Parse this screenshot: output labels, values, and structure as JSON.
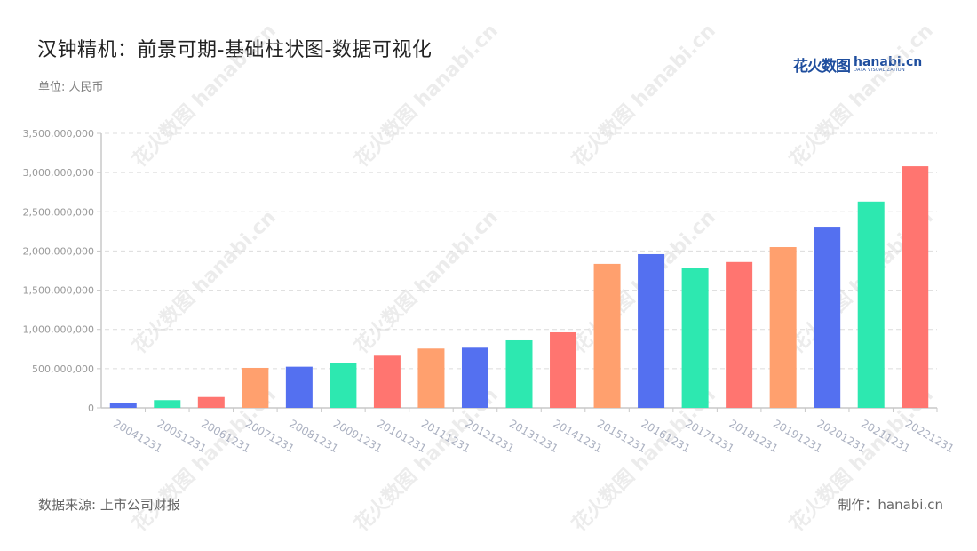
{
  "header": {
    "title": "汉钟精机：前景可期-基础柱状图-数据可视化",
    "unit": "单位: 人民币",
    "logo_cn": "花火数图",
    "logo_en": "hanabi.cn",
    "logo_tagline": "DATA VISUALIZATION"
  },
  "footer": {
    "source": "数据来源: 上市公司财报",
    "maker": "制作：hanabi.cn"
  },
  "watermark_text": "花火数图 hanabi.cn",
  "colors": [
    "#5470f0",
    "#2de8b0",
    "#ff7570",
    "#ffa06e"
  ],
  "chart_data": {
    "type": "bar",
    "title": "汉钟精机：前景可期-基础柱状图-数据可视化",
    "xlabel": "",
    "ylabel": "单位: 人民币",
    "ylim": [
      0,
      3500000000
    ],
    "yticks": [
      0,
      500000000,
      1000000000,
      1500000000,
      2000000000,
      2500000000,
      3000000000,
      3500000000
    ],
    "ytick_labels": [
      "0",
      "500,000,000",
      "1,000,000,000",
      "1,500,000,000",
      "2,000,000,000",
      "2,500,000,000",
      "3,000,000,000",
      "3,500,000,000"
    ],
    "grid": true,
    "legend": "none",
    "categories": [
      "20041231",
      "20051231",
      "20061231",
      "20071231",
      "20081231",
      "20091231",
      "20101231",
      "20111231",
      "20121231",
      "20131231",
      "20141231",
      "20151231",
      "20161231",
      "20171231",
      "20181231",
      "20191231",
      "20201231",
      "20211231",
      "20221231"
    ],
    "values": [
      57000000,
      99000000,
      139000000,
      510000000,
      525000000,
      570000000,
      665000000,
      756000000,
      767000000,
      861000000,
      963000000,
      1836000000,
      1960000000,
      1785000000,
      1860000000,
      2050000000,
      2310000000,
      2630000000,
      3080000000
    ],
    "bar_colors": [
      "#5470f0",
      "#2de8b0",
      "#ff7570",
      "#ffa06e",
      "#5470f0",
      "#2de8b0",
      "#ff7570",
      "#ffa06e",
      "#5470f0",
      "#2de8b0",
      "#ff7570",
      "#ffa06e",
      "#5470f0",
      "#2de8b0",
      "#ff7570",
      "#ffa06e",
      "#5470f0",
      "#2de8b0",
      "#ff7570"
    ]
  }
}
